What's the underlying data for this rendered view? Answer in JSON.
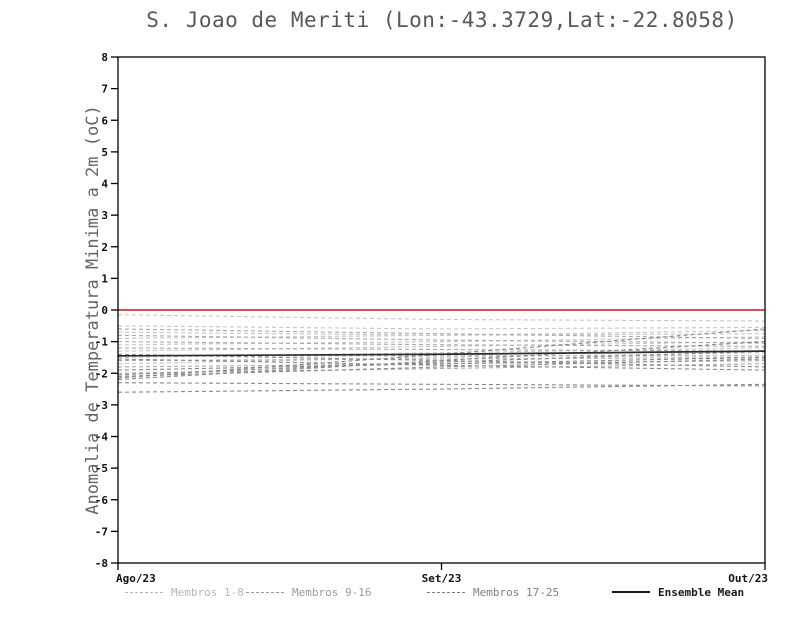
{
  "chart_data": {
    "type": "line",
    "title": "S. Joao de Meriti (Lon:-43.3729,Lat:-22.8058)",
    "ylabel": "Anomalia de Temperatura Minima a 2m (oC)",
    "x_tick_labels": [
      "Ago/23",
      "Set/23",
      "Out/23"
    ],
    "ylim": [
      -8,
      8
    ],
    "y_tick_step": 1,
    "grid": false,
    "zero_line": {
      "y": 0,
      "color": "#d23b3b"
    },
    "groups": [
      {
        "name": "Membros 1-8",
        "color": "#c6c6c6",
        "members": [
          [
            -0.15,
            -0.3,
            -0.35
          ],
          [
            -0.5,
            -0.6,
            -0.55
          ],
          [
            -0.7,
            -0.8,
            -0.75
          ],
          [
            -0.9,
            -0.8,
            -0.65
          ],
          [
            -1.1,
            -1.0,
            -0.85
          ],
          [
            -1.3,
            -1.15,
            -1.0
          ],
          [
            -1.5,
            -1.35,
            -1.2
          ],
          [
            -1.7,
            -1.5,
            -1.35
          ]
        ]
      },
      {
        "name": "Membros 9-16",
        "color": "#a9a9a9",
        "members": [
          [
            -0.6,
            -0.75,
            -0.9
          ],
          [
            -0.8,
            -0.95,
            -1.05
          ],
          [
            -1.0,
            -1.1,
            -1.15
          ],
          [
            -1.2,
            -1.25,
            -1.3
          ],
          [
            -1.45,
            -1.45,
            -1.45
          ],
          [
            -1.6,
            -1.55,
            -1.5
          ],
          [
            -1.8,
            -1.7,
            -1.6
          ],
          [
            -2.0,
            -1.85,
            -1.7
          ]
        ]
      },
      {
        "name": "Membros 17-25",
        "color": "#8a8a8a",
        "members": [
          [
            -1.4,
            -1.6,
            -1.8
          ],
          [
            -1.55,
            -1.75,
            -1.9
          ],
          [
            -1.9,
            -1.7,
            -1.5
          ],
          [
            -2.05,
            -1.65,
            -1.3
          ],
          [
            -2.1,
            -1.8,
            -1.55
          ],
          [
            -2.2,
            -1.6,
            -1.0
          ],
          [
            -2.3,
            -2.35,
            -2.4
          ],
          [
            -2.6,
            -2.5,
            -2.35
          ],
          [
            -2.15,
            -1.4,
            -0.6
          ]
        ]
      }
    ],
    "ensemble_mean": {
      "name": "Ensemble Mean",
      "color": "#2b2b2b",
      "values": [
        -1.45,
        -1.4,
        -1.3
      ]
    },
    "legend": [
      {
        "label": "Membros 1-8",
        "color": "#b5b5b5",
        "line": "dashed"
      },
      {
        "label": "Membros 9-16",
        "color": "#9a9a9a",
        "line": "dashed"
      },
      {
        "label": "Membros 17-25",
        "color": "#7f7f7f",
        "line": "dashed"
      },
      {
        "label": "Ensemble Mean",
        "color": "#1a1a1a",
        "line": "solid",
        "weight": "bold"
      }
    ]
  }
}
